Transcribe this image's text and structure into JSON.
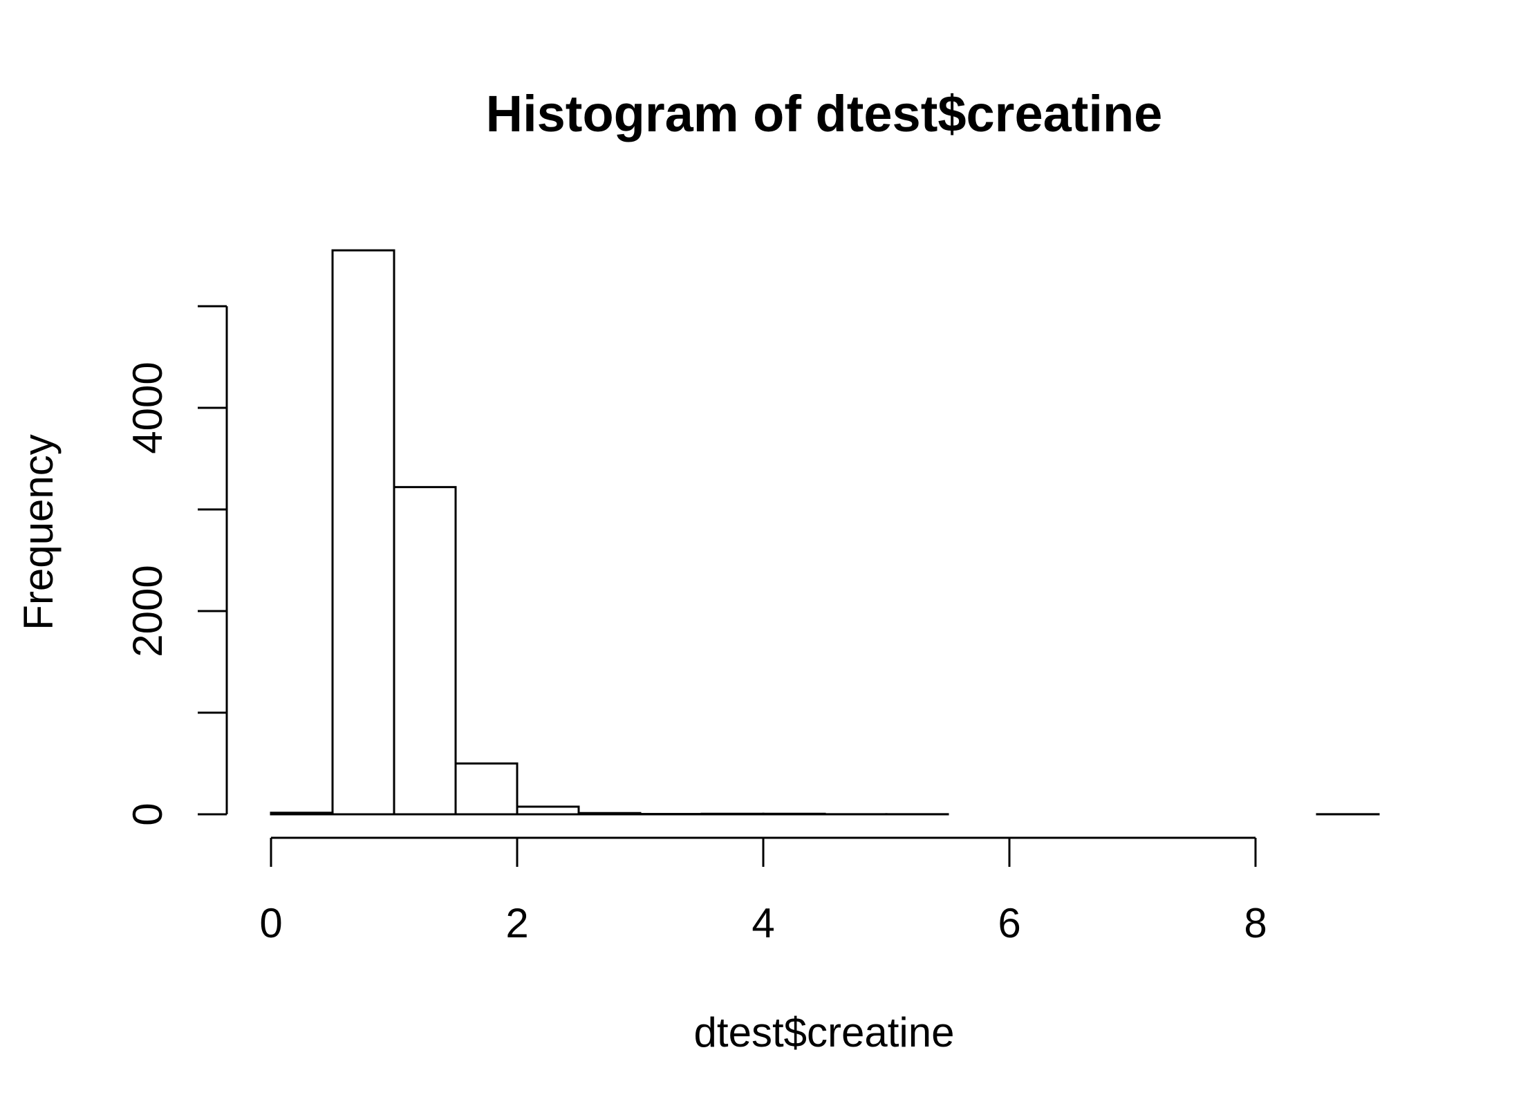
{
  "chart_data": {
    "type": "bar",
    "title": "Histogram of dtest$creatine",
    "xlabel": "dtest$creatine",
    "ylabel": "Frequency",
    "xlim": [
      0,
      9
    ],
    "ylim": [
      0,
      5600
    ],
    "x_ticks": [
      0,
      2,
      4,
      6,
      8
    ],
    "x_tick_labels": [
      "0",
      "2",
      "4",
      "6",
      "8"
    ],
    "y_ticks": [
      0,
      1000,
      2000,
      3000,
      4000,
      5000
    ],
    "y_tick_labels": [
      "0",
      "",
      "2000",
      "",
      "4000",
      ""
    ],
    "bins": [
      {
        "start": 0.0,
        "end": 0.5,
        "count": 15
      },
      {
        "start": 0.5,
        "end": 1.0,
        "count": 5550
      },
      {
        "start": 1.0,
        "end": 1.5,
        "count": 3220
      },
      {
        "start": 1.5,
        "end": 2.0,
        "count": 500
      },
      {
        "start": 2.0,
        "end": 2.5,
        "count": 75
      },
      {
        "start": 2.5,
        "end": 3.0,
        "count": 12
      },
      {
        "start": 3.0,
        "end": 3.5,
        "count": 3
      },
      {
        "start": 3.5,
        "end": 4.0,
        "count": 5
      },
      {
        "start": 4.0,
        "end": 4.5,
        "count": 5
      },
      {
        "start": 4.5,
        "end": 5.0,
        "count": 1
      },
      {
        "start": 5.0,
        "end": 5.5,
        "count": 1
      },
      {
        "start": 5.5,
        "end": 6.0,
        "count": 0
      },
      {
        "start": 6.0,
        "end": 6.5,
        "count": 0
      },
      {
        "start": 6.5,
        "end": 7.0,
        "count": 0
      },
      {
        "start": 7.0,
        "end": 7.5,
        "count": 0
      },
      {
        "start": 7.5,
        "end": 8.0,
        "count": 0
      },
      {
        "start": 8.0,
        "end": 8.5,
        "count": 0
      },
      {
        "start": 8.5,
        "end": 9.0,
        "count": 1
      }
    ],
    "grid": false,
    "legend": "none"
  }
}
